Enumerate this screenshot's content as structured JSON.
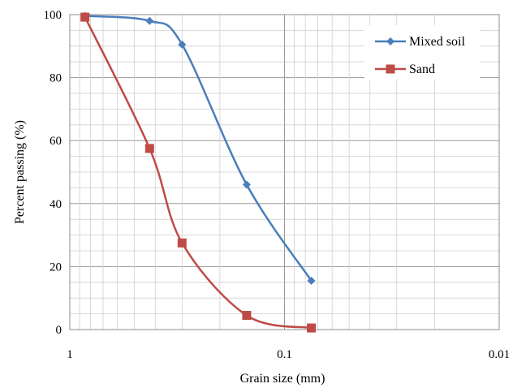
{
  "chart_data": {
    "type": "line",
    "xlabel": "Grain size (mm)",
    "ylabel": "Percent passing (%)",
    "x_scale": "log-reversed",
    "xlim": [
      1,
      0.01
    ],
    "ylim": [
      0,
      100
    ],
    "x_tick_labels": [
      "1",
      "0.1",
      "0.01"
    ],
    "y_tick_labels": [
      "0",
      "20",
      "40",
      "60",
      "80",
      "100"
    ],
    "grid": true,
    "legend_position": "top-right",
    "series": [
      {
        "name": "Mixed soil",
        "color": "#4a7ebb",
        "marker": "diamond",
        "points": [
          {
            "x": 0.85,
            "y": 99.6
          },
          {
            "x": 0.425,
            "y": 98
          },
          {
            "x": 0.3,
            "y": 90.5
          },
          {
            "x": 0.15,
            "y": 46
          },
          {
            "x": 0.075,
            "y": 15.5
          }
        ]
      },
      {
        "name": "Sand",
        "color": "#be4b48",
        "marker": "square",
        "points": [
          {
            "x": 0.85,
            "y": 99.2
          },
          {
            "x": 0.425,
            "y": 57.5
          },
          {
            "x": 0.3,
            "y": 27.5
          },
          {
            "x": 0.15,
            "y": 4.5
          },
          {
            "x": 0.075,
            "y": 0.5
          }
        ]
      }
    ]
  }
}
